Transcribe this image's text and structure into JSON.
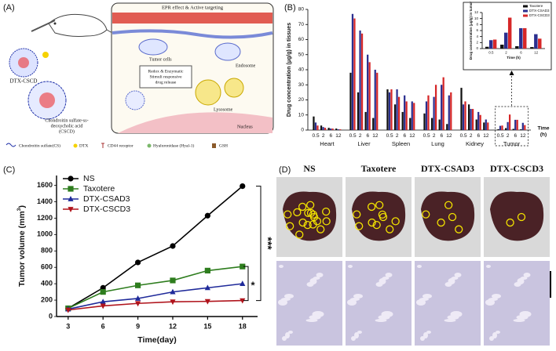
{
  "panel_labels": [
    "(A)",
    "(B)",
    "(C)",
    "(D)"
  ],
  "panel_a": {
    "targeting": "EPR effect & Active targeting",
    "tumor_cells": "Tumor cells",
    "endosome": "Endosome",
    "release_note": [
      "Redox & Enzymatic",
      "Stimuli responsive",
      "drug release"
    ],
    "lysosome": "Lysosome",
    "nucleus": "Nucleus",
    "particle": "DTX-CSCD",
    "conjugate": [
      "Chondroitin sulfate-ss-",
      "deoxycholic acid",
      "(CSCD)"
    ],
    "legend": [
      "Chondroitin sulfate(CS)",
      "DTX",
      "CD44 receptor",
      "Hyaluronidase (Hyal-1)",
      "GSH"
    ]
  },
  "chart_data": [
    {
      "type": "bar",
      "ylabel": "Drug concentration (μg/g) in tissues",
      "xlabel": [
        "Time",
        "(h)"
      ],
      "groups": [
        "Heart",
        "Liver",
        "Spleen",
        "Lung",
        "Kidney",
        "Tumor"
      ],
      "categories": [
        "0.5",
        "2",
        "6",
        "12",
        "0.5",
        "2",
        "6",
        "12",
        "0.5",
        "2",
        "6",
        "12",
        "0.5",
        "2",
        "6",
        "12",
        "0.5",
        "2",
        "6",
        "12",
        "0.5",
        "2",
        "6",
        "12"
      ],
      "series": [
        {
          "color": "#111111",
          "values": [
            9,
            3,
            1.5,
            1,
            38,
            25,
            12,
            8,
            27,
            17,
            12,
            8,
            11,
            8,
            7,
            4,
            28,
            17,
            7,
            5,
            0.6,
            1.3,
            0.8,
            0.5
          ]
        },
        {
          "color": "#2b2f8f",
          "values": [
            5,
            2,
            1,
            0.5,
            77,
            66,
            50,
            40,
            25,
            27,
            23,
            19,
            19,
            22,
            30,
            23,
            17,
            14,
            12,
            7,
            2.8,
            5.3,
            6.8,
            4.8
          ]
        },
        {
          "color": "#d62728",
          "values": [
            3,
            1.5,
            1,
            0.5,
            74,
            64,
            45,
            38,
            27,
            22,
            19,
            18,
            23,
            30,
            35,
            25,
            19,
            14,
            10,
            5,
            3,
            10.3,
            6.8,
            3.3
          ]
        }
      ],
      "ylim": [
        0,
        80
      ],
      "yticks": [
        0,
        10,
        20,
        30,
        40,
        50,
        60,
        70,
        80
      ],
      "grid": false
    },
    {
      "type": "bar",
      "ylabel": "Drug concentration (μg/g) in tumor",
      "xlabel": [
        "Time (h)"
      ],
      "categories": [
        "0.5",
        "2",
        "6",
        "12"
      ],
      "series": [
        {
          "name": "Taxotere",
          "color": "#111111",
          "values": [
            0.6,
            1.3,
            0.8,
            0.5
          ]
        },
        {
          "name": "DTX-CSAD3",
          "color": "#2b2f8f",
          "values": [
            2.8,
            5.3,
            6.8,
            4.8
          ]
        },
        {
          "name": "DTX-CSCD3",
          "color": "#d62728",
          "values": [
            3,
            10.3,
            6.8,
            3.3
          ]
        }
      ],
      "ylim": [
        0,
        12
      ],
      "yticks": [
        0,
        2,
        4,
        6,
        8,
        10,
        12
      ],
      "legend": "upper right",
      "grid": false
    },
    {
      "type": "line",
      "ylabel": [
        "Tumor volume (mm",
        "3",
        ")"
      ],
      "xlabel": [
        "Time(day)"
      ],
      "x": [
        3,
        6,
        9,
        12,
        15,
        18
      ],
      "series": [
        {
          "name": "NS",
          "color": "#000000",
          "marker": "circle",
          "values": [
            100,
            350,
            660,
            860,
            1230,
            1590
          ]
        },
        {
          "name": "Taxotere",
          "color": "#2e7d1e",
          "marker": "square",
          "values": [
            100,
            300,
            380,
            440,
            560,
            610
          ]
        },
        {
          "name": "DTX-CSAD3",
          "color": "#1f2a9a",
          "marker": "triangle",
          "values": [
            90,
            180,
            220,
            300,
            350,
            400
          ]
        },
        {
          "name": "DTX-CSCD3",
          "color": "#b0141c",
          "marker": "triangle-down",
          "values": [
            80,
            130,
            160,
            180,
            185,
            195
          ]
        }
      ],
      "xlim": [
        2,
        19.3
      ],
      "xticks": [
        3,
        6,
        9,
        12,
        15,
        18
      ],
      "ylim": [
        0,
        1720
      ],
      "yticks": [
        0,
        200,
        400,
        600,
        800,
        1000,
        1200,
        1400,
        1600
      ],
      "legend": "upper left",
      "annotations": [
        "***",
        "*"
      ],
      "grid": false
    }
  ],
  "panel_d": {
    "columns": [
      "NS",
      "Taxotere",
      "DTX-CSAD3",
      "DTX-CSCD3"
    ]
  }
}
